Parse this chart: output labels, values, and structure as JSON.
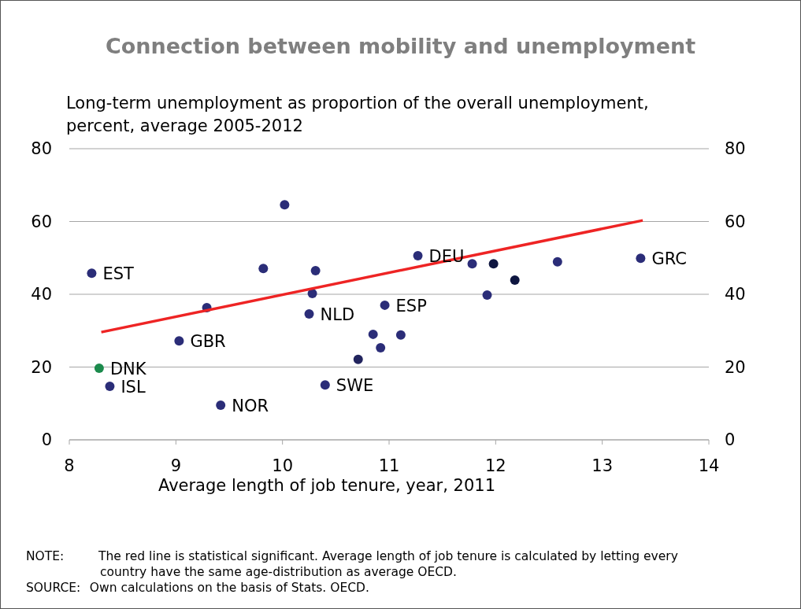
{
  "chart_data": {
    "type": "scatter",
    "title": "Connection between mobility and unemployment",
    "ylabel": "Long-term unemployment as proportion of the overall unemployment, percent, average 2005-2012",
    "xlabel": "Average length of job tenure, year, 2011",
    "xlim": [
      8,
      14
    ],
    "xticks": [
      8,
      9,
      10,
      11,
      12,
      13,
      14
    ],
    "ylim": [
      0,
      80
    ],
    "yticks": [
      0,
      20,
      40,
      60,
      80
    ],
    "y2lim": [
      0,
      80
    ],
    "y2ticks": [
      0,
      20,
      40,
      60,
      80
    ],
    "grid": "y",
    "series": [
      {
        "marker": "circle",
        "x": [
          8.21,
          8.28,
          8.38,
          9.03,
          9.29,
          9.42,
          9.82,
          10.02,
          10.31,
          10.28,
          10.25,
          10.4,
          10.71,
          10.85,
          10.92,
          10.96,
          11.11,
          11.27,
          11.78,
          11.98,
          11.92,
          12.18,
          12.58,
          13.36
        ],
        "values": [
          45.8,
          19.7,
          14.7,
          27.2,
          36.3,
          9.5,
          47.1,
          64.6,
          46.5,
          40.2,
          34.6,
          15.1,
          22.1,
          29.0,
          25.3,
          37.0,
          28.8,
          50.6,
          48.4,
          48.4,
          39.8,
          43.9,
          48.9,
          49.9
        ],
        "colors": [
          "#2b2d78",
          "#1b8a4c",
          "#2b2d78",
          "#2b2d78",
          "#2b2d78",
          "#2b2d78",
          "#2b2d78",
          "#2b2d78",
          "#2b2d78",
          "#2b2d78",
          "#2b2d78",
          "#2b2d78",
          "#22245e",
          "#2b2d78",
          "#2b2d78",
          "#2b2d78",
          "#2b2d78",
          "#2b2d78",
          "#2b2d78",
          "#0e1640",
          "#2b2d78",
          "#0e1640",
          "#2b2d78",
          "#2b2d78"
        ]
      },
      {
        "type": "line",
        "x": [
          8.3,
          13.38
        ],
        "values": [
          29.6,
          60.3
        ],
        "color": "#ee2424"
      }
    ],
    "annotations": [
      {
        "text": "EST",
        "x": 8.21,
        "y": 45.8
      },
      {
        "text": "DNK",
        "x": 8.28,
        "y": 19.7
      },
      {
        "text": "ISL",
        "x": 8.38,
        "y": 14.7
      },
      {
        "text": "GBR",
        "x": 9.03,
        "y": 27.2
      },
      {
        "text": "NOR",
        "x": 9.42,
        "y": 9.5
      },
      {
        "text": "NLD",
        "x": 10.25,
        "y": 34.6
      },
      {
        "text": "SWE",
        "x": 10.4,
        "y": 15.1
      },
      {
        "text": "ESP",
        "x": 10.96,
        "y": 37.0
      },
      {
        "text": "DEU",
        "x": 11.27,
        "y": 50.6
      },
      {
        "text": "GRC",
        "x": 13.36,
        "y": 49.9
      },
      "NOTE: The red line is statistical significant. Average length of job tenure is calculated by letting every country have the same age-distribution as average OECD.",
      "SOURCE: Own calculations on the basis of Stats. OECD."
    ]
  }
}
